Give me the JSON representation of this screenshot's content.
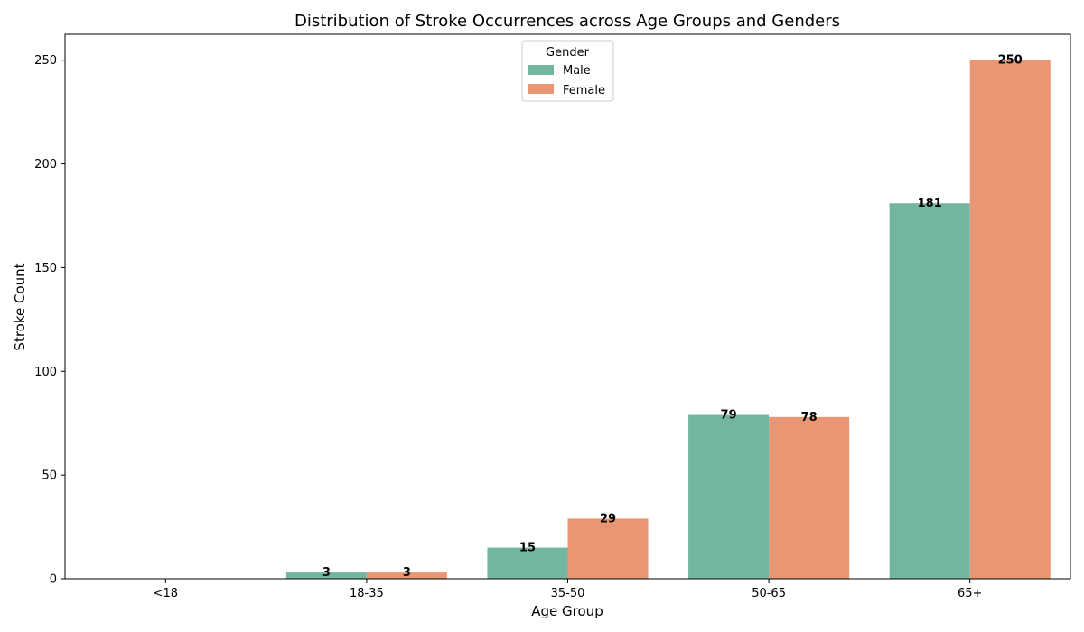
{
  "chart_data": {
    "type": "bar",
    "title": "Distribution of Stroke Occurrences across Age Groups and Genders",
    "xlabel": "Age Group",
    "ylabel": "Stroke Count",
    "categories": [
      "<18",
      "18-35",
      "35-50",
      "50-65",
      "65+"
    ],
    "series": [
      {
        "name": "Male",
        "color": "#72b6a1",
        "values": [
          0,
          3,
          15,
          79,
          181
        ]
      },
      {
        "name": "Female",
        "color": "#e99675",
        "values": [
          0,
          3,
          29,
          78,
          250
        ]
      }
    ],
    "data_labels": [
      [
        null,
        "3",
        "15",
        "79",
        "181"
      ],
      [
        null,
        "3",
        "29",
        "78",
        "250"
      ]
    ],
    "ylim": [
      0,
      262.5
    ],
    "yticks": [
      0,
      50,
      100,
      150,
      200,
      250
    ],
    "grid": false,
    "legend": {
      "title": "Gender",
      "placement": "top-center"
    }
  }
}
